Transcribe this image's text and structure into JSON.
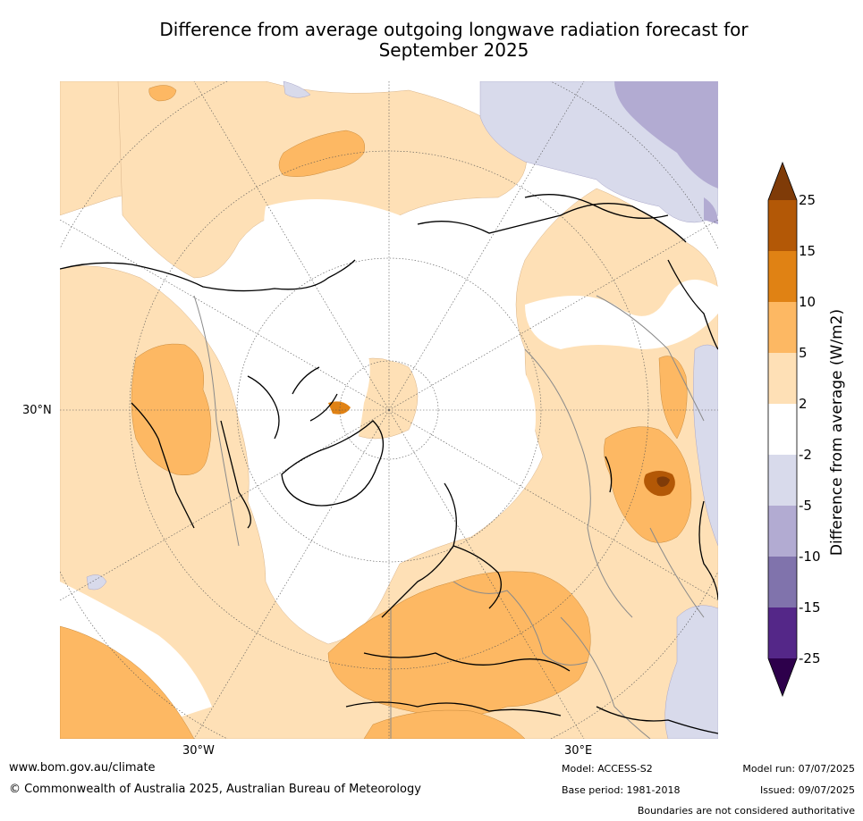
{
  "title_line1": "Difference from average outgoing longwave radiation forecast for",
  "title_line2": "September 2025",
  "map_labels": {
    "lat_30n": "30°N",
    "lon_30w": "30°W",
    "lon_30e": "30°E"
  },
  "colorbar": {
    "title": "Difference from average (W/m2)",
    "ticks": [
      "25",
      "15",
      "10",
      "5",
      "2",
      "-2",
      "-5",
      "-10",
      "-15",
      "-25"
    ],
    "colors": {
      "extend_max": "#7f3b08",
      "15_to_25": "#b35806",
      "10_to_15": "#e08214",
      "5_to_10": "#fdb863",
      "2_to_5": "#fee0b6",
      "neutral": "#ffffff",
      "m2_to_m5": "#d8daeb",
      "m5_to_m10": "#b2abd2",
      "m10_to_m15": "#8073ac",
      "m15_to_m25": "#542788",
      "extend_min": "#2d004b"
    }
  },
  "footer": {
    "url": "www.bom.gov.au/climate",
    "copyright": "© Commonwealth of Australia 2025, Australian Bureau of Meteorology",
    "model": "Model: ACCESS-S2",
    "base_period": "Base period: 1981-2018",
    "model_run": "Model run: 07/07/2025",
    "issued": "Issued: 09/07/2025",
    "boundaries_note": "Boundaries are not considered authoritative"
  }
}
